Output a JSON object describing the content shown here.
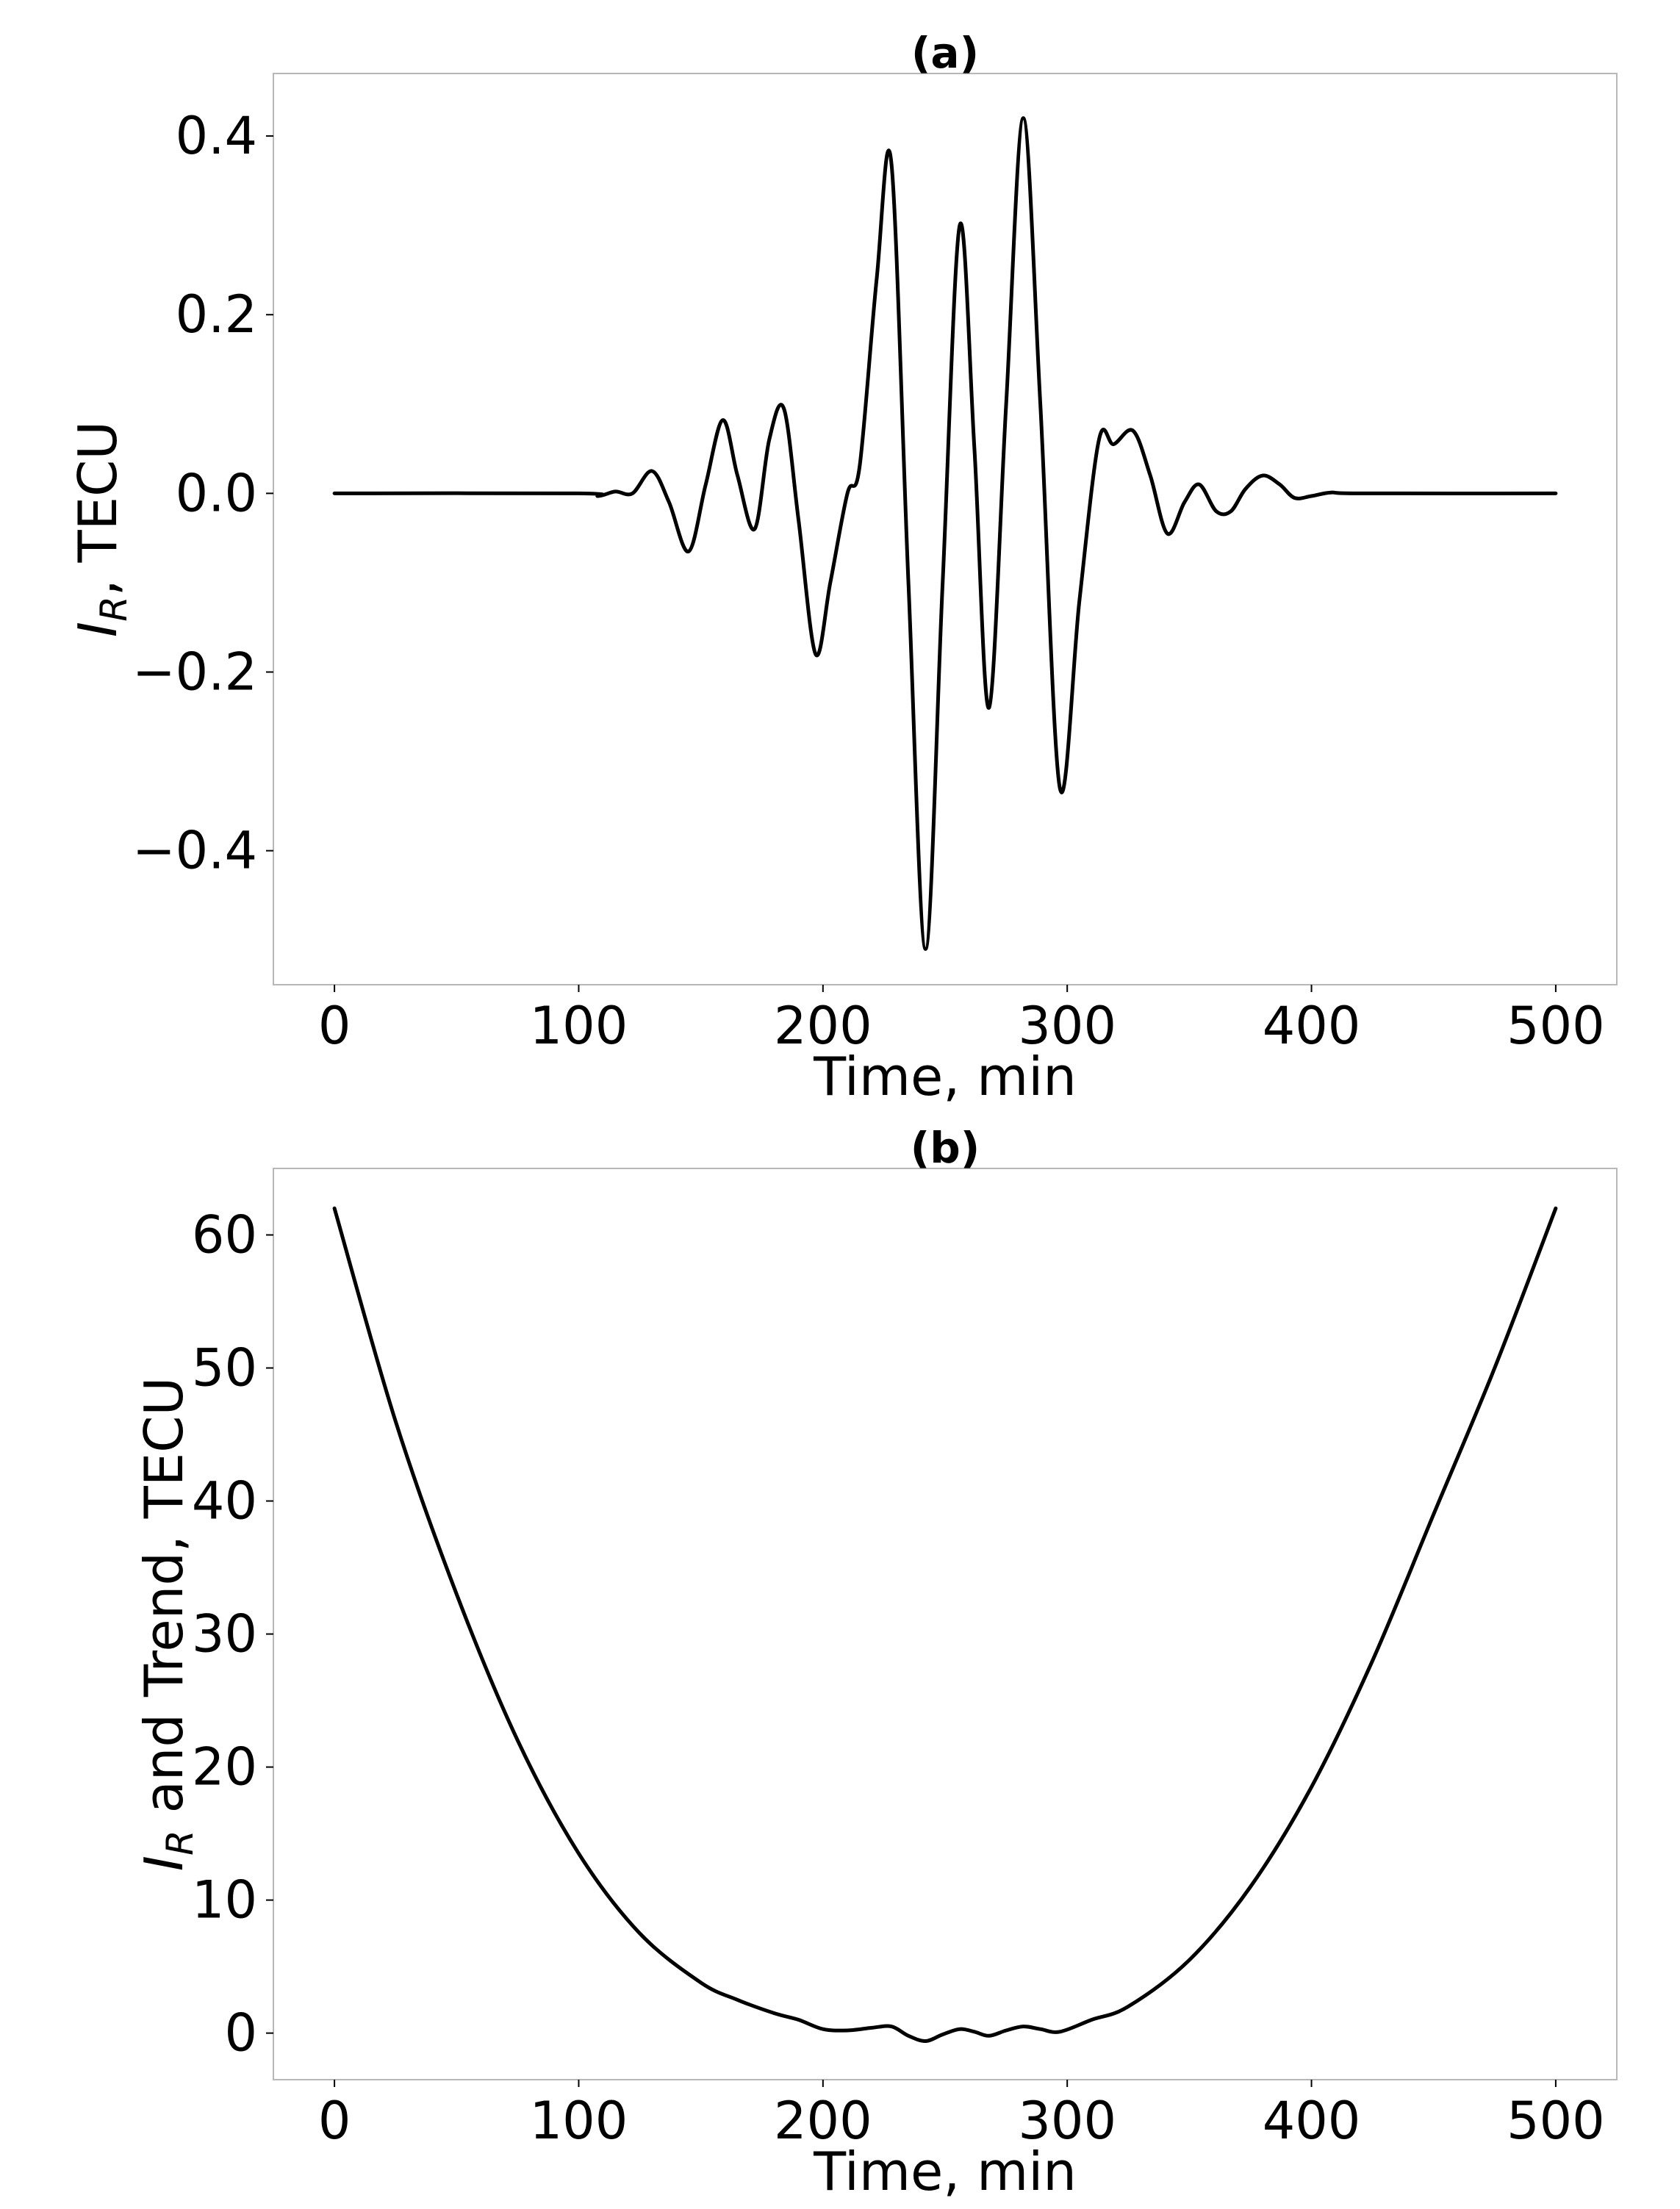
{
  "chart_data": [
    {
      "type": "line",
      "title": "(a)",
      "xlabel": "Time, min",
      "ylabel_main": "I",
      "ylabel_sub": "R",
      "ylabel_rest": ", TECU",
      "xlim": [
        -25,
        525
      ],
      "ylim": [
        -0.55,
        0.47
      ],
      "xticks": [
        0,
        100,
        200,
        300,
        400,
        500
      ],
      "xtick_labels": [
        "0",
        "100",
        "200",
        "300",
        "400",
        "500"
      ],
      "yticks": [
        0.4,
        0.2,
        0.0,
        -0.2,
        -0.4
      ],
      "ytick_labels": [
        "0.4",
        "0.2",
        "0.0",
        "−0.2",
        "−0.4"
      ],
      "grid": false,
      "series": [
        {
          "x": [
            0,
            100,
            108,
            115,
            122,
            130,
            137,
            145,
            152,
            159,
            165,
            172,
            178,
            184,
            190,
            197,
            203,
            210,
            215,
            222,
            228,
            235,
            242,
            249,
            256,
            262,
            268,
            275,
            282,
            289,
            297,
            305,
            313,
            319,
            327,
            334,
            341,
            348,
            354,
            361,
            367,
            373,
            380,
            387,
            393,
            400,
            408,
            420,
            500
          ],
          "y": [
            0,
            0,
            -0.003,
            0.002,
            0,
            0.025,
            -0.01,
            -0.065,
            0.01,
            0.082,
            0.02,
            -0.04,
            0.06,
            0.095,
            -0.03,
            -0.18,
            -0.1,
            0,
            0.03,
            0.24,
            0.37,
            -0.1,
            -0.51,
            -0.1,
            0.3,
            0.05,
            -0.24,
            0.1,
            0.42,
            0.1,
            -0.33,
            -0.12,
            0.06,
            0.055,
            0.07,
            0.02,
            -0.045,
            -0.01,
            0.01,
            -0.02,
            -0.02,
            0.005,
            0.02,
            0.01,
            -0.005,
            -0.003,
            0.001,
            0,
            0
          ]
        }
      ]
    },
    {
      "type": "line",
      "title": "(b)",
      "xlabel": "Time, min",
      "ylabel_main": "I",
      "ylabel_sub": "R",
      "ylabel_rest": " and Trend, TECU",
      "xlim": [
        -25,
        525
      ],
      "ylim": [
        -3.5,
        65
      ],
      "xticks": [
        0,
        100,
        200,
        300,
        400,
        500
      ],
      "xtick_labels": [
        "0",
        "100",
        "200",
        "300",
        "400",
        "500"
      ],
      "yticks": [
        60,
        50,
        40,
        30,
        20,
        10,
        0
      ],
      "ytick_labels": [
        "60",
        "50",
        "40",
        "30",
        "20",
        "10",
        "0"
      ],
      "grid": false,
      "series": [
        {
          "x": [
            0,
            25,
            50,
            75,
            100,
            125,
            150,
            165,
            180,
            190,
            200,
            210,
            220,
            228,
            235,
            242,
            249,
            256,
            262,
            268,
            275,
            282,
            289,
            297,
            310,
            325,
            350,
            375,
            400,
            425,
            450,
            475,
            500
          ],
          "y": [
            62,
            46,
            33,
            22,
            13.5,
            7.5,
            3.8,
            2.5,
            1.5,
            1.0,
            0.3,
            0.2,
            0.4,
            0.5,
            -0.2,
            -0.6,
            -0.1,
            0.3,
            0.1,
            -0.2,
            0.2,
            0.5,
            0.3,
            0.1,
            1.0,
            2.0,
            5.5,
            11,
            18.5,
            28,
            39,
            50,
            62
          ]
        }
      ]
    }
  ]
}
